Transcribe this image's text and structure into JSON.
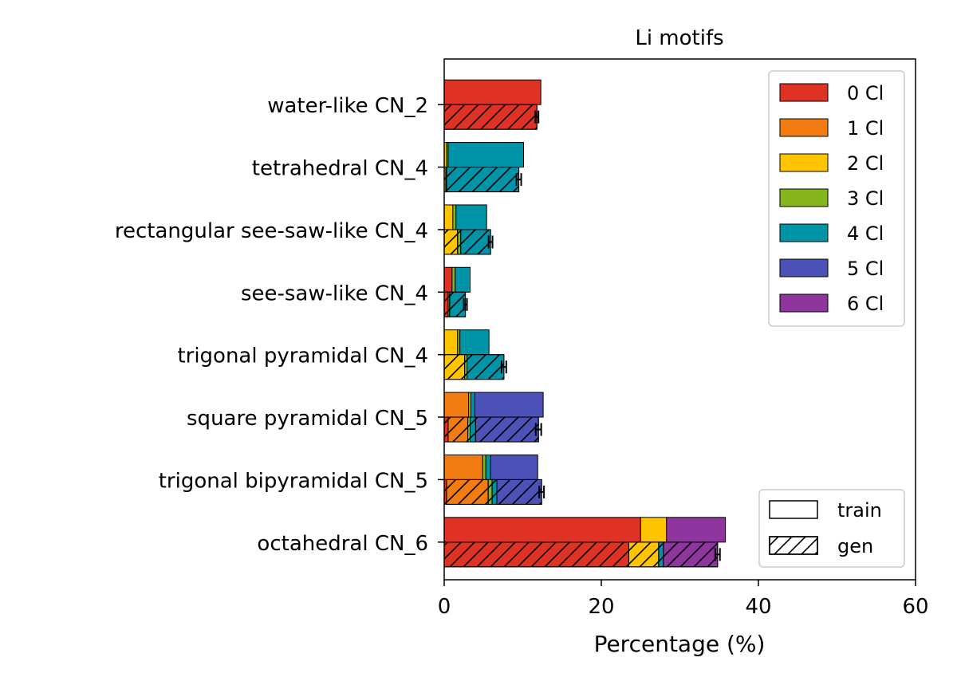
{
  "chart_data": {
    "type": "bar",
    "orientation": "horizontal",
    "stacked": true,
    "title": "Li motifs",
    "xlabel": "Percentage (%)",
    "ylabel": "",
    "xlim": [
      0,
      60
    ],
    "xticks": [
      "0",
      "20",
      "40",
      "60"
    ],
    "grid": false,
    "legend_position": "top-right",
    "hatch_legend_position": "bottom-right",
    "categories": [
      "water-like CN_2",
      "tetrahedral CN_4",
      "rectangular see-saw-like CN_4",
      "see-saw-like CN_4",
      "trigonal pyramidal CN_4",
      "square pyramidal CN_5",
      "trigonal bipyramidal CN_5",
      "octahedral CN_6"
    ],
    "series": [
      {
        "name": "0 Cl",
        "color": "#e03224",
        "train": [
          12.3,
          0.0,
          0.0,
          1.0,
          0.0,
          0.0,
          0.0,
          25.0
        ],
        "gen": [
          11.8,
          0.0,
          0.0,
          0.5,
          0.0,
          0.5,
          0.3,
          23.5
        ]
      },
      {
        "name": "1 Cl",
        "color": "#f27b12",
        "train": [
          0.0,
          0.0,
          0.0,
          0.0,
          0.0,
          3.1,
          4.9,
          0.0
        ],
        "gen": [
          0.0,
          0.0,
          0.0,
          0.0,
          0.0,
          2.5,
          5.3,
          0.0
        ]
      },
      {
        "name": "2 Cl",
        "color": "#ffc400",
        "train": [
          0.0,
          0.3,
          1.1,
          0.0,
          1.7,
          0.0,
          0.0,
          3.3
        ],
        "gen": [
          0.0,
          0.2,
          1.7,
          0.0,
          2.6,
          0.0,
          0.0,
          3.8
        ]
      },
      {
        "name": "3 Cl",
        "color": "#84b61c",
        "train": [
          0.0,
          0.2,
          0.4,
          0.4,
          0.3,
          0.3,
          0.4,
          0.0
        ],
        "gen": [
          0.0,
          0.1,
          0.4,
          0.2,
          0.3,
          0.3,
          0.5,
          0.0
        ]
      },
      {
        "name": "4 Cl",
        "color": "#0094a8",
        "train": [
          0.0,
          9.6,
          3.9,
          1.9,
          3.7,
          0.5,
          0.6,
          0.0
        ],
        "gen": [
          0.0,
          9.2,
          3.8,
          2.0,
          4.7,
          0.7,
          0.6,
          0.6
        ]
      },
      {
        "name": "5 Cl",
        "color": "#4c52b8",
        "train": [
          0.0,
          0.0,
          0.0,
          0.0,
          0.0,
          8.7,
          6.0,
          0.0
        ],
        "gen": [
          0.0,
          0.0,
          0.0,
          0.0,
          0.0,
          8.0,
          5.7,
          0.0
        ]
      },
      {
        "name": "6 Cl",
        "color": "#8e359e",
        "train": [
          0.0,
          0.0,
          0.0,
          0.0,
          0.0,
          0.0,
          0.0,
          7.5
        ],
        "gen": [
          0.0,
          0.0,
          0.0,
          0.0,
          0.0,
          0.0,
          0.0,
          6.9
        ]
      }
    ],
    "gen_error": [
      0.2,
      0.3,
      0.25,
      0.2,
      0.3,
      0.35,
      0.3,
      0.3
    ],
    "hatch_legend": [
      "train",
      "gen"
    ]
  }
}
